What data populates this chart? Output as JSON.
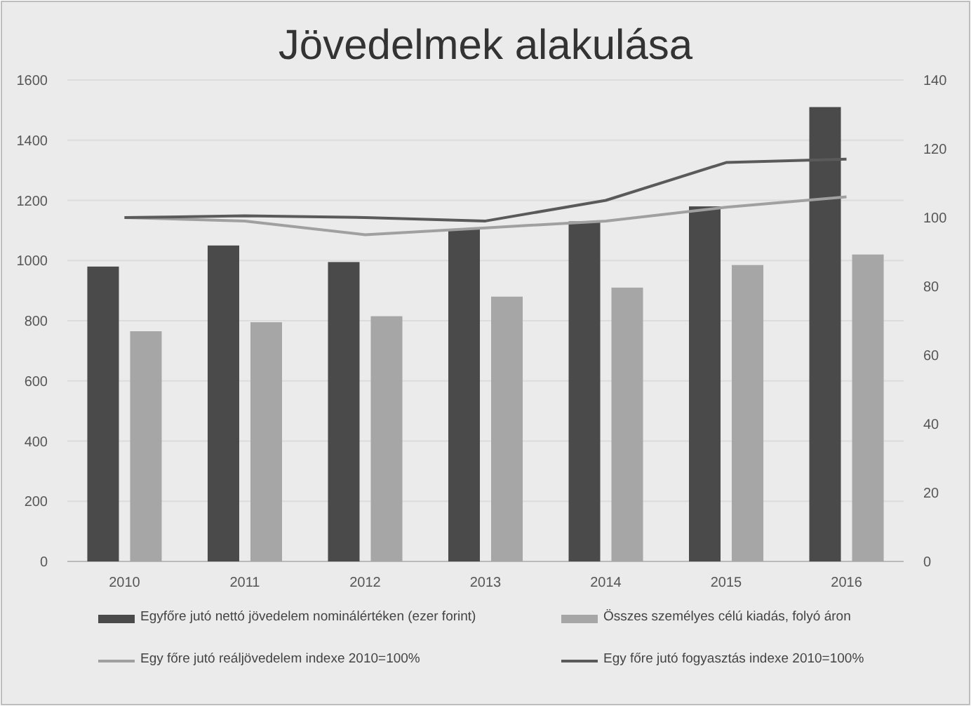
{
  "chart_data": {
    "type": "bar",
    "title": "Jövedelmek alakulása",
    "categories": [
      "2010",
      "2011",
      "2012",
      "2013",
      "2014",
      "2015",
      "2016"
    ],
    "series": [
      {
        "name": "Egyfőre jutó nettó jövedelem nominálértéken (ezer forint)",
        "color": "#4a4a4a",
        "values": [
          980,
          1050,
          995,
          1105,
          1130,
          1180,
          1510
        ]
      },
      {
        "name": "Összes személyes célú kiadás, folyó áron",
        "color": "#a6a6a6",
        "values": [
          765,
          795,
          815,
          880,
          910,
          985,
          1020
        ]
      },
      {
        "name": "Egy főre jutó reáljövedelem indexe 2010=100%",
        "type": "line",
        "axis": "y2",
        "color": "#a0a0a0",
        "values": [
          100,
          99,
          95,
          97,
          99,
          103,
          106
        ]
      },
      {
        "name": "Egy főre jutó fogyasztás indexe 2010=100%",
        "type": "line",
        "axis": "y2",
        "color": "#5a5a5a",
        "values": [
          100,
          100.5,
          100,
          99,
          105,
          116,
          117
        ]
      }
    ],
    "ylim": [
      0,
      1600
    ],
    "yticks": [
      0,
      200,
      400,
      600,
      800,
      1000,
      1200,
      1400,
      1600
    ],
    "y2lim": [
      0,
      140
    ],
    "y2ticks": [
      0,
      20,
      40,
      60,
      80,
      100,
      120,
      140
    ],
    "grid": "y",
    "legend": "bottom"
  }
}
